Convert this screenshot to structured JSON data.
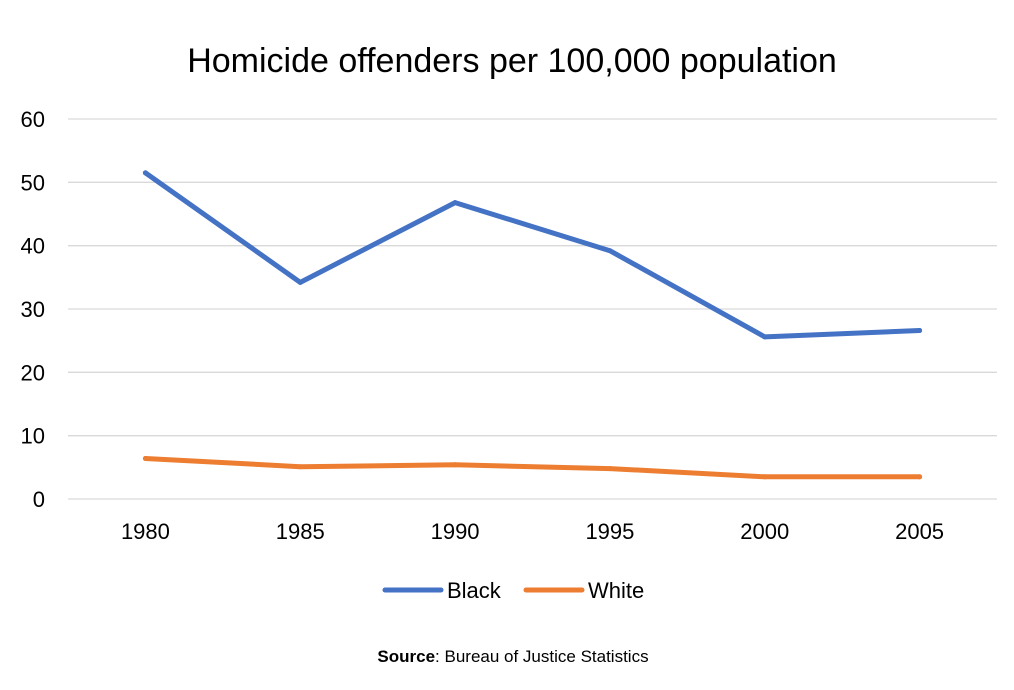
{
  "chart_data": {
    "type": "line",
    "title": "Homicide offenders per 100,000 population",
    "xlabel": "",
    "ylabel": "",
    "categories": [
      "1980",
      "1985",
      "1990",
      "1995",
      "2000",
      "2005"
    ],
    "ylim": [
      0,
      60
    ],
    "yticks": [
      0,
      10,
      20,
      30,
      40,
      50,
      60
    ],
    "grid": true,
    "legend_position": "bottom",
    "series": [
      {
        "name": "Black",
        "color": "#4472C4",
        "values": [
          51.5,
          34.2,
          46.8,
          39.2,
          25.6,
          26.6
        ]
      },
      {
        "name": "White",
        "color": "#ED7D31",
        "values": [
          6.4,
          5.1,
          5.4,
          4.8,
          3.5,
          3.5
        ]
      }
    ]
  },
  "source": {
    "label": "Source",
    "text": ": Bureau of Justice Statistics"
  }
}
